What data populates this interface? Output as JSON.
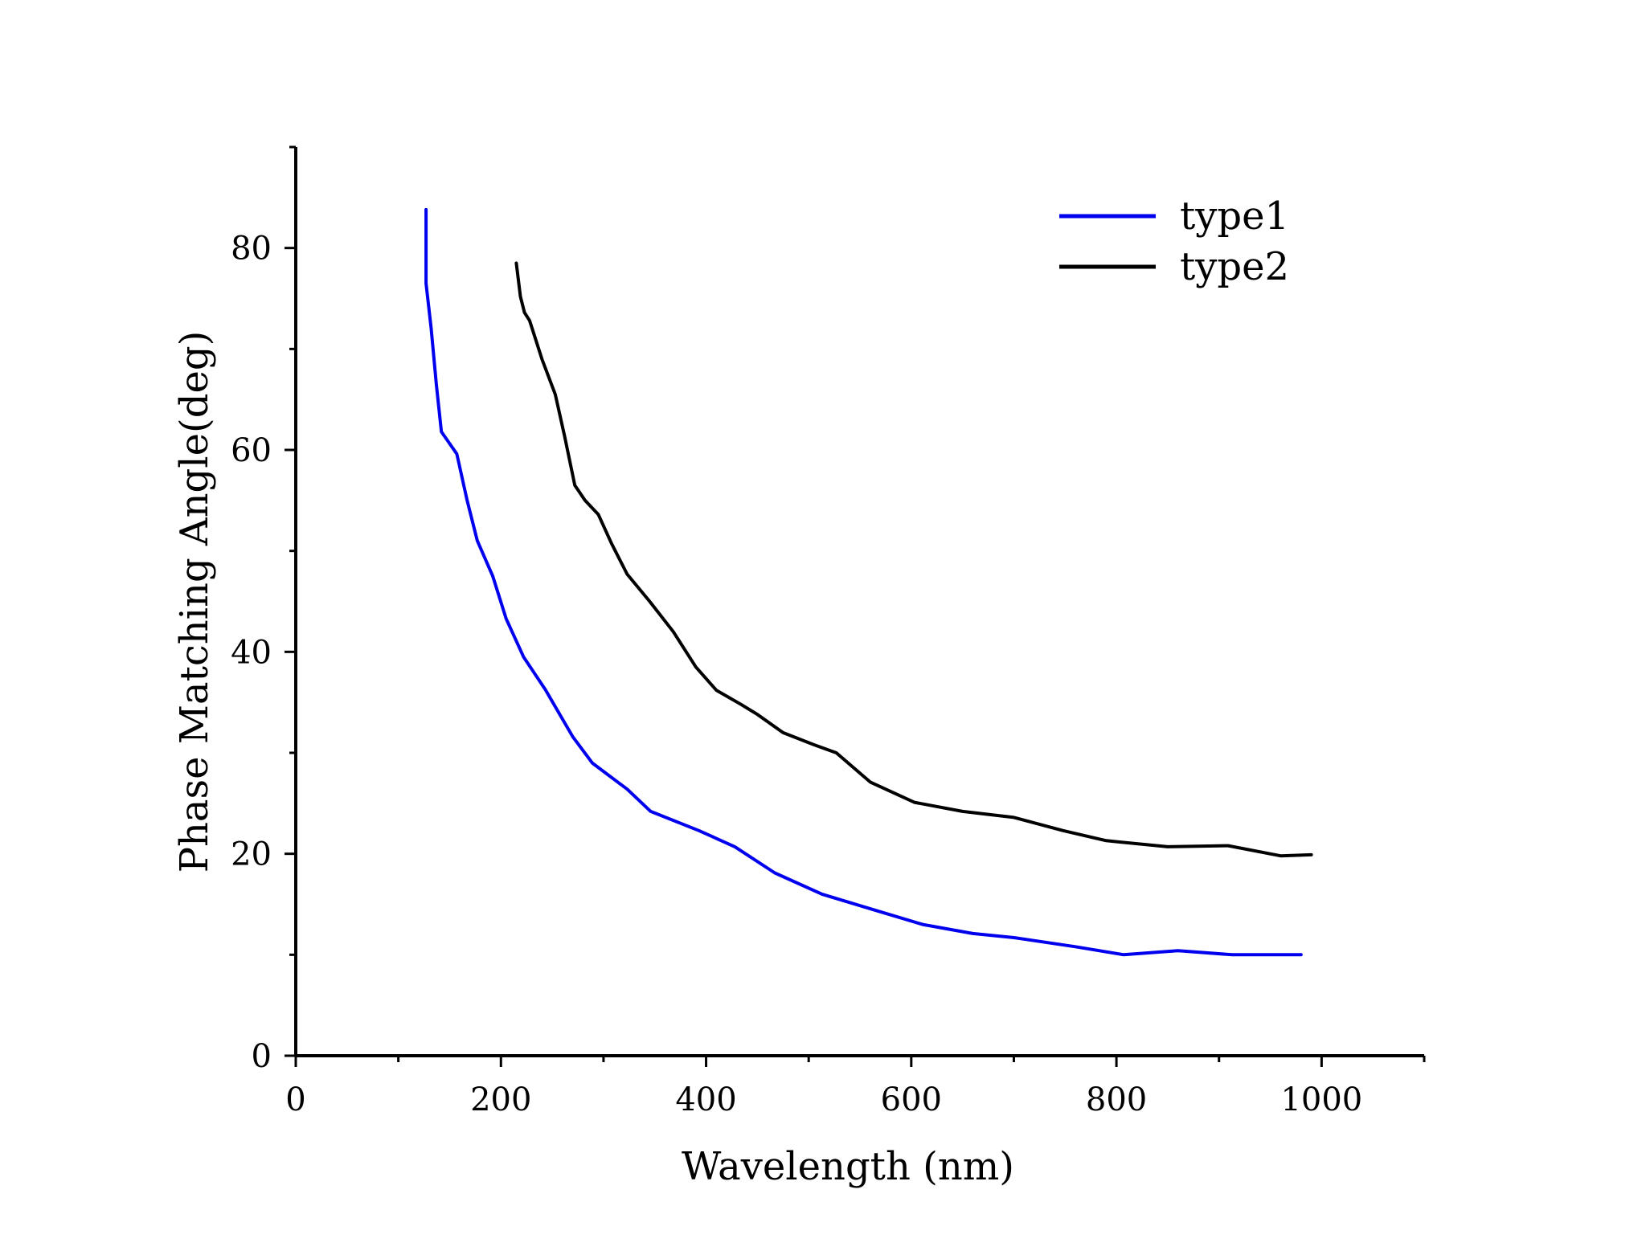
{
  "chart_data": {
    "type": "line",
    "title": "",
    "xlabel": "Wavelength (nm)",
    "ylabel": "Phase Matching Angle(deg)",
    "xlim": [
      0,
      1100
    ],
    "ylim": [
      0,
      90
    ],
    "xticks": [
      0,
      200,
      400,
      600,
      800,
      1000
    ],
    "xtick_labels": [
      "0",
      "200",
      "400",
      "600",
      "800",
      "1000"
    ],
    "xminor": [
      100,
      300,
      500,
      700,
      900,
      1100
    ],
    "yticks": [
      0,
      20,
      40,
      60,
      80
    ],
    "ytick_labels": [
      "0",
      "20",
      "40",
      "60",
      "80"
    ],
    "yminor": [
      10,
      30,
      50,
      70,
      90
    ],
    "grid": false,
    "legend_position": "top-right",
    "series": [
      {
        "name": "type1",
        "color": "#0000ee",
        "points": [
          [
            127,
            83.8
          ],
          [
            127,
            76.5
          ],
          [
            132,
            72
          ],
          [
            137,
            66.5
          ],
          [
            142,
            61.8
          ],
          [
            157,
            59.6
          ],
          [
            167,
            55
          ],
          [
            177,
            51
          ],
          [
            192,
            47.5
          ],
          [
            205,
            43.3
          ],
          [
            222,
            39.5
          ],
          [
            243,
            36.3
          ],
          [
            270,
            31.6
          ],
          [
            289,
            29
          ],
          [
            323,
            26.4
          ],
          [
            346,
            24.2
          ],
          [
            393,
            22.3
          ],
          [
            428,
            20.7
          ],
          [
            467,
            18.1
          ],
          [
            513,
            16
          ],
          [
            562,
            14.5
          ],
          [
            611,
            13
          ],
          [
            660,
            12.1
          ],
          [
            700,
            11.7
          ],
          [
            760,
            10.8
          ],
          [
            807,
            10
          ],
          [
            860,
            10.4
          ],
          [
            913,
            10
          ],
          [
            960,
            10
          ],
          [
            980,
            10
          ]
        ]
      },
      {
        "name": "type2",
        "color": "#000000",
        "points": [
          [
            215,
            78.5
          ],
          [
            219,
            75.2
          ],
          [
            223,
            73.6
          ],
          [
            228,
            72.8
          ],
          [
            240,
            69
          ],
          [
            253,
            65.5
          ],
          [
            262,
            61.4
          ],
          [
            272,
            56.5
          ],
          [
            282,
            55
          ],
          [
            295,
            53.6
          ],
          [
            308,
            50.7
          ],
          [
            323,
            47.7
          ],
          [
            345,
            45
          ],
          [
            368,
            42
          ],
          [
            390,
            38.5
          ],
          [
            410,
            36.2
          ],
          [
            434,
            34.8
          ],
          [
            450,
            33.8
          ],
          [
            475,
            32
          ],
          [
            505,
            30.8
          ],
          [
            527,
            30
          ],
          [
            560,
            27.1
          ],
          [
            603,
            25.1
          ],
          [
            650,
            24.2
          ],
          [
            700,
            23.6
          ],
          [
            748,
            22.3
          ],
          [
            790,
            21.3
          ],
          [
            850,
            20.7
          ],
          [
            909,
            20.8
          ],
          [
            960,
            19.8
          ],
          [
            990,
            19.9
          ]
        ]
      }
    ]
  }
}
